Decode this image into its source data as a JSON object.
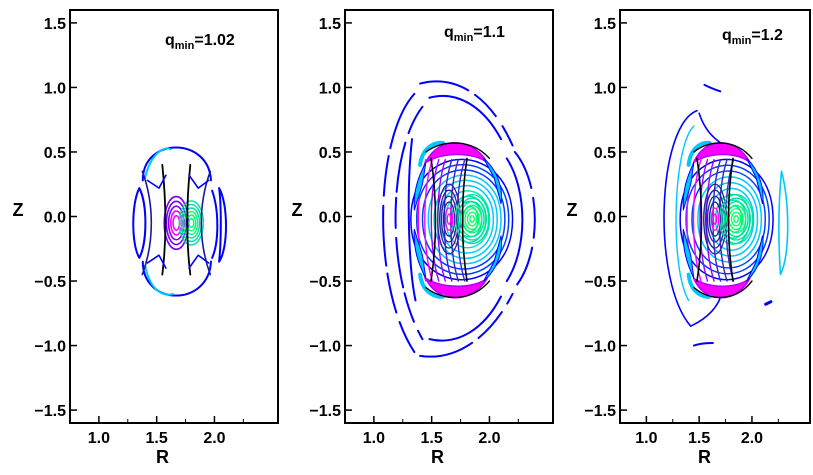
{
  "chart_data": [
    {
      "type": "contour",
      "title": "q",
      "title_sub": "min",
      "title_value": "=1.02",
      "xlabel": "R",
      "ylabel": "Z",
      "xlim": [
        0.75,
        2.55
      ],
      "ylim": [
        -1.6,
        1.6
      ],
      "xticks": [
        "1.0",
        "1.5",
        "2.0"
      ],
      "yticks": [
        "1.5",
        "1.0",
        "0.5",
        "0.0",
        "−0.5",
        "−1.0",
        "−1.5"
      ],
      "extent": {
        "r_min": 1.35,
        "r_max": 2.0,
        "z_min": -0.68,
        "z_max": 0.56
      },
      "magnetic_axis": {
        "R": 1.8,
        "Z": -0.05
      },
      "core": {
        "R": 1.67,
        "Z": -0.05
      },
      "colors": [
        "#0000ff",
        "#00c8ff",
        "#ff00ff",
        "#00ff66"
      ]
    },
    {
      "type": "contour",
      "title": "q",
      "title_sub": "min",
      "title_value": "=1.1",
      "xlabel": "R",
      "ylabel": "Z",
      "xlim": [
        0.75,
        2.55
      ],
      "ylim": [
        -1.6,
        1.6
      ],
      "xticks": [
        "1.0",
        "1.5",
        "2.0"
      ],
      "yticks": [
        "1.5",
        "1.0",
        "0.5",
        "0.0",
        "−0.5",
        "−1.0",
        "−1.5"
      ],
      "extent": {
        "r_min": 1.03,
        "r_max": 2.43,
        "z_min": -1.1,
        "z_max": 1.05
      },
      "magnetic_axis": {
        "R": 1.85,
        "Z": -0.02
      },
      "core": {
        "R": 1.65,
        "Z": -0.02
      },
      "colors": [
        "#0000ff",
        "#00c8ff",
        "#ff00ff",
        "#00ff66",
        "#8000ff"
      ]
    },
    {
      "type": "contour",
      "title": "q",
      "title_sub": "min",
      "title_value": "=1.2",
      "xlabel": "R",
      "ylabel": "Z",
      "xlim": [
        0.75,
        2.55
      ],
      "ylim": [
        -1.6,
        1.6
      ],
      "xticks": [
        "1.0",
        "1.5",
        "2.0"
      ],
      "yticks": [
        "1.5",
        "1.0",
        "0.5",
        "0.0",
        "−0.5",
        "−1.0",
        "−1.5"
      ],
      "extent": {
        "r_min": 1.07,
        "r_max": 2.33,
        "z_min": -1.05,
        "z_max": 1.02
      },
      "magnetic_axis": {
        "R": 1.85,
        "Z": -0.02
      },
      "core": {
        "R": 1.65,
        "Z": -0.02
      },
      "colors": [
        "#0000ff",
        "#00c8ff",
        "#ff00ff",
        "#00ff66",
        "#8000ff"
      ]
    }
  ]
}
